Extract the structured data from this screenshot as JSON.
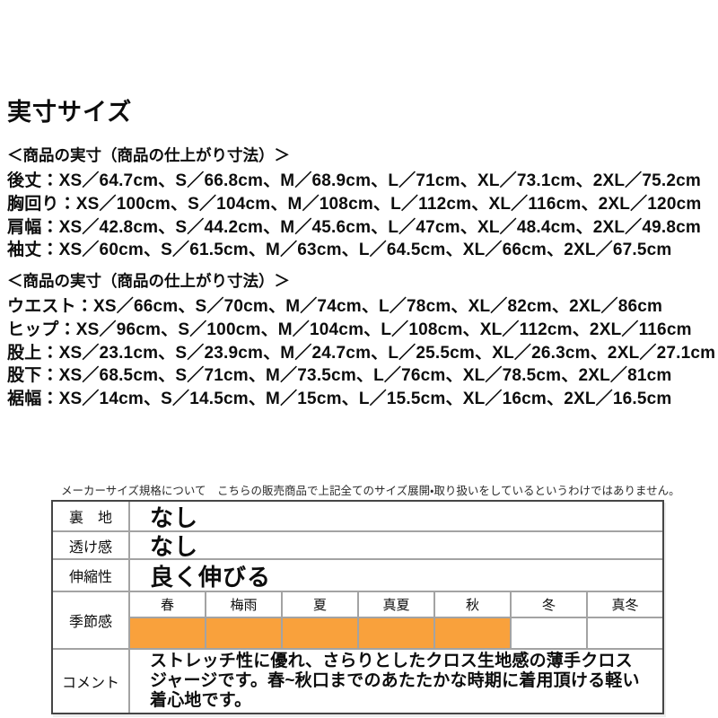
{
  "page": {
    "title": "実寸サイズ"
  },
  "sections": [
    {
      "heading": "＜商品の実寸（商品の仕上がり寸法）＞",
      "lines": [
        "後丈：XS／64.7cm、S／66.8cm、M／68.9cm、L／71cm、XL／73.1cm、2XL／75.2cm",
        "胸回り：XS／100cm、S／104cm、M／108cm、L／112cm、XL／116cm、2XL／120cm",
        "肩幅：XS／42.8cm、S／44.2cm、M／45.6cm、L／47cm、XL／48.4cm、2XL／49.8cm",
        "袖丈：XS／60cm、S／61.5cm、M／63cm、L／64.5cm、XL／66cm、2XL／67.5cm"
      ]
    },
    {
      "heading": "＜商品の実寸（商品の仕上がり寸法）＞",
      "lines": [
        "ウエスト：XS／66cm、S／70cm、M／74cm、L／78cm、XL／82cm、2XL／86cm",
        "ヒップ：XS／96cm、S／100cm、M／104cm、L／108cm、XL／112cm、2XL／116cm",
        "股上：XS／23.1cm、S／23.9cm、M／24.7cm、L／25.5cm、XL／26.3cm、2XL／27.1cm",
        "股下：XS／68.5cm、S／71cm、M／73.5cm、L／76cm、XL／78.5cm、2XL／81cm",
        "裾幅：XS／14cm、S／14.5cm、M／15cm、L／15.5cm、XL／16cm、2XL／16.5cm"
      ]
    }
  ],
  "note": "メーカーサイズ規格について　こちらの販売商品で上記全てのサイズ展開・取り扱いをしているというわけではありません。",
  "spec_table": {
    "rows": [
      {
        "label": "裏　地",
        "value": "なし"
      },
      {
        "label": "透け感",
        "value": "なし"
      },
      {
        "label": "伸縮性",
        "value": "良く伸びる"
      }
    ],
    "season": {
      "label": "季節感",
      "columns": [
        {
          "name": "春",
          "highlighted": true
        },
        {
          "name": "梅雨",
          "highlighted": true
        },
        {
          "name": "夏",
          "highlighted": true
        },
        {
          "name": "真夏",
          "highlighted": true
        },
        {
          "name": "秋",
          "highlighted": true
        },
        {
          "name": "冬",
          "highlighted": false
        },
        {
          "name": "真冬",
          "highlighted": false
        }
      ]
    },
    "comment": {
      "label": "コメント",
      "text": "ストレッチ性に優れ、さらりとしたクロス生地感の薄手クロス\nジャージです。春~秋口までのあたたかな時期に着用頂ける軽い\n着心地です。"
    }
  },
  "colors": {
    "season_highlight": "#F9A13C",
    "table_border_outer": "#454545",
    "table_border_inner": "#A3A3A3"
  }
}
